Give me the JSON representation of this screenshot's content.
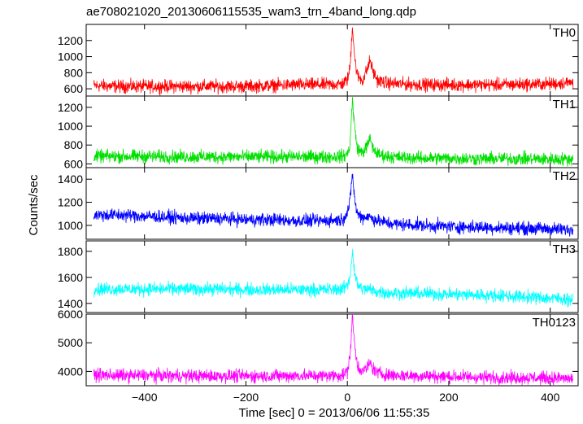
{
  "chart_data": {
    "type": "line",
    "title": "ae708021020_20130606115535_wam3_trn_4band_long.qdp",
    "xlabel": "Time [sec] 0 = 2013/06/06 11:55:35",
    "ylabel": "Counts/sec",
    "xlim": [
      -515,
      455
    ],
    "x_ticks": [
      -400,
      -200,
      0,
      200,
      400
    ],
    "x_tick_labels": [
      "−400",
      "−200",
      "0",
      "200",
      "400"
    ],
    "grid": false,
    "series": [
      {
        "name": "TH0",
        "color": "#ff0000",
        "ylim": [
          510,
          1400
        ],
        "y_ticks": [
          600,
          800,
          1000,
          1200
        ],
        "x": [
          -500,
          -450,
          -400,
          -350,
          -300,
          -250,
          -200,
          -150,
          -100,
          -50,
          -10,
          0,
          5,
          10,
          15,
          20,
          30,
          40,
          45,
          50,
          60,
          80,
          100,
          150,
          200,
          250,
          300,
          350,
          400,
          445
        ],
        "values": [
          640,
          630,
          630,
          630,
          630,
          630,
          630,
          640,
          650,
          650,
          660,
          710,
          850,
          1380,
          950,
          760,
          700,
          860,
          960,
          820,
          700,
          670,
          660,
          650,
          650,
          650,
          650,
          655,
          660,
          680
        ]
      },
      {
        "name": "TH1",
        "color": "#00e000",
        "ylim": [
          560,
          1320
        ],
        "y_ticks": [
          600,
          800,
          1000,
          1200
        ],
        "x": [
          -500,
          -450,
          -400,
          -350,
          -300,
          -250,
          -200,
          -150,
          -100,
          -50,
          -10,
          0,
          5,
          10,
          15,
          20,
          30,
          40,
          45,
          50,
          60,
          80,
          100,
          150,
          200,
          250,
          300,
          350,
          400,
          445
        ],
        "values": [
          680,
          680,
          680,
          675,
          675,
          675,
          675,
          675,
          675,
          675,
          680,
          700,
          800,
          1280,
          950,
          760,
          720,
          800,
          870,
          770,
          700,
          680,
          670,
          660,
          660,
          655,
          655,
          655,
          650,
          650
        ]
      },
      {
        "name": "TH2",
        "color": "#0000ff",
        "ylim": [
          880,
          1500
        ],
        "y_ticks": [
          1000,
          1200,
          1400
        ],
        "x": [
          -500,
          -450,
          -400,
          -350,
          -300,
          -250,
          -200,
          -150,
          -100,
          -50,
          -10,
          0,
          5,
          10,
          15,
          20,
          30,
          40,
          50,
          60,
          80,
          100,
          150,
          200,
          250,
          300,
          350,
          400,
          445
        ],
        "values": [
          1090,
          1090,
          1080,
          1070,
          1060,
          1060,
          1050,
          1050,
          1040,
          1040,
          1050,
          1110,
          1200,
          1450,
          1200,
          1100,
          1070,
          1080,
          1060,
          1040,
          1020,
          1010,
          1000,
          990,
          985,
          980,
          975,
          970,
          960
        ]
      },
      {
        "name": "TH3",
        "color": "#00ffff",
        "ylim": [
          1330,
          1880
        ],
        "y_ticks": [
          1400,
          1600,
          1800
        ],
        "x": [
          -500,
          -450,
          -400,
          -350,
          -300,
          -250,
          -200,
          -150,
          -100,
          -50,
          -10,
          0,
          5,
          10,
          15,
          20,
          30,
          40,
          50,
          60,
          80,
          100,
          150,
          200,
          250,
          300,
          350,
          400,
          445
        ],
        "values": [
          1510,
          1510,
          1510,
          1510,
          1510,
          1510,
          1505,
          1505,
          1505,
          1505,
          1510,
          1540,
          1600,
          1800,
          1620,
          1540,
          1510,
          1510,
          1500,
          1490,
          1480,
          1480,
          1475,
          1470,
          1465,
          1460,
          1450,
          1440,
          1430
        ]
      },
      {
        "name": "TH0123",
        "color": "#ff00ff",
        "ylim": [
          3500,
          6000
        ],
        "y_ticks": [
          4000,
          5000,
          6000
        ],
        "x": [
          -500,
          -450,
          -400,
          -350,
          -300,
          -250,
          -200,
          -150,
          -100,
          -50,
          -10,
          0,
          5,
          10,
          15,
          20,
          30,
          40,
          45,
          50,
          60,
          80,
          100,
          150,
          200,
          250,
          300,
          350,
          400,
          445
        ],
        "values": [
          3880,
          3860,
          3860,
          3850,
          3840,
          3840,
          3840,
          3840,
          3850,
          3850,
          3870,
          4000,
          4500,
          5900,
          4800,
          4200,
          4000,
          4150,
          4300,
          4100,
          3950,
          3880,
          3860,
          3840,
          3820,
          3800,
          3790,
          3780,
          3770,
          3750
        ]
      }
    ]
  }
}
